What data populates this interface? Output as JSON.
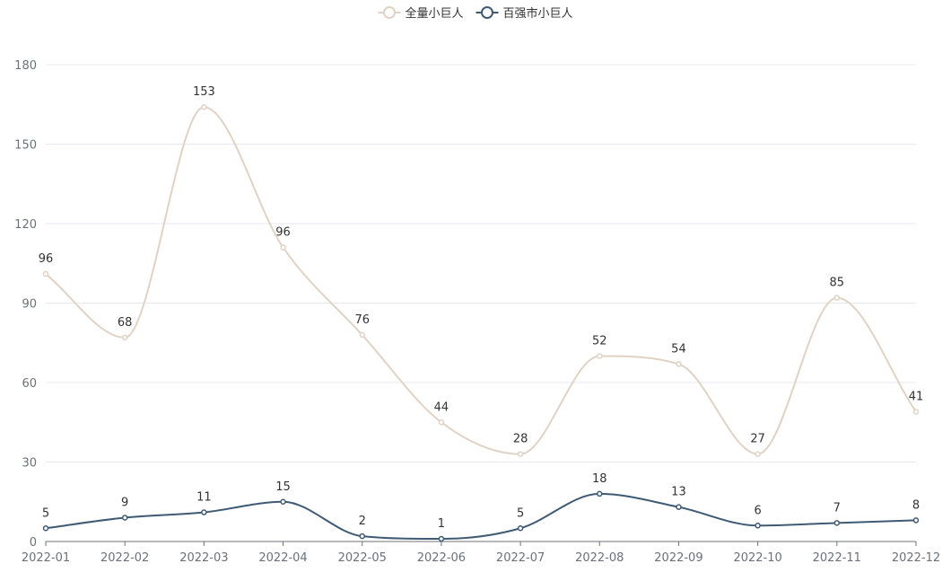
{
  "chart_data": {
    "type": "line",
    "title": "",
    "xlabel": "",
    "ylabel": "",
    "categories": [
      "2022-01",
      "2022-02",
      "2022-03",
      "2022-04",
      "2022-05",
      "2022-06",
      "2022-07",
      "2022-08",
      "2022-09",
      "2022-10",
      "2022-11",
      "2022-12"
    ],
    "ylim": [
      0,
      180
    ],
    "yticks": [
      0,
      30,
      60,
      90,
      120,
      150,
      180
    ],
    "grid": true,
    "legend_position": "top-center",
    "smooth": true,
    "series": [
      {
        "name": "全量小巨人",
        "color": "#e0d2c5",
        "values": [
          101,
          77,
          164,
          111,
          78,
          45,
          33,
          70,
          67,
          33,
          92,
          49
        ],
        "labels": [
          "96",
          "68",
          "153",
          "96",
          "76",
          "44",
          "28",
          "52",
          "54",
          "27",
          "85",
          "41"
        ]
      },
      {
        "name": "百强市小巨人",
        "color": "#3f5a75",
        "values": [
          5,
          9,
          11,
          15,
          2,
          1,
          5,
          18,
          13,
          6,
          7,
          8
        ],
        "labels": [
          "5",
          "9",
          "11",
          "15",
          "2",
          "1",
          "5",
          "18",
          "13",
          "6",
          "7",
          "8"
        ]
      }
    ]
  }
}
